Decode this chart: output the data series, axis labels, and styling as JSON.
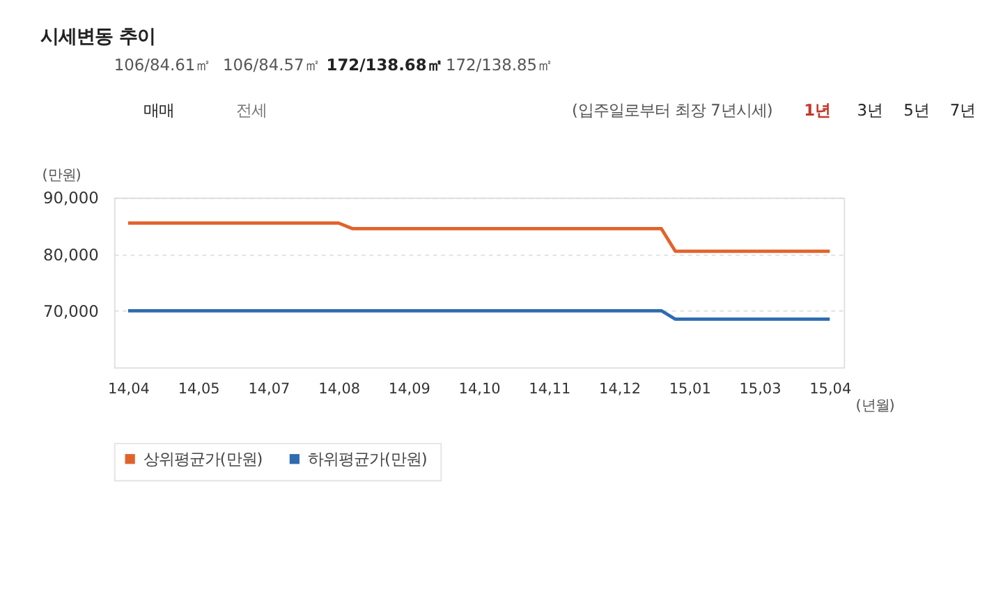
{
  "chart_data": {
    "type": "line",
    "title": "시세변동 추이",
    "ylabel": "(만원)",
    "xlabel": "(년월)",
    "categories": [
      "14,04",
      null,
      null,
      null,
      null,
      "14,05",
      null,
      null,
      null,
      null,
      "14,07",
      null,
      null,
      null,
      null,
      "14,08",
      null,
      null,
      null,
      null,
      "14,09",
      null,
      null,
      null,
      null,
      "14,10",
      null,
      null,
      null,
      null,
      "14,11",
      null,
      null,
      null,
      null,
      "14,12",
      null,
      null,
      null,
      null,
      "15,01",
      null,
      null,
      null,
      null,
      "15,03",
      null,
      null,
      null,
      null,
      "15,04"
    ],
    "series": [
      {
        "name": "상위평균가(만원)",
        "color": "#e2622b",
        "values": [
          85500,
          85500,
          85500,
          85500,
          85500,
          85500,
          85500,
          85500,
          85500,
          85500,
          85500,
          85500,
          85500,
          85500,
          85500,
          85500,
          84500,
          84500,
          84500,
          84500,
          84500,
          84500,
          84500,
          84500,
          84500,
          84500,
          84500,
          84500,
          84500,
          84500,
          84500,
          84500,
          84500,
          84500,
          84500,
          84500,
          84500,
          84500,
          84500,
          80500,
          80500,
          80500,
          80500,
          80500,
          80500,
          80500,
          80500,
          80500,
          80500,
          80500,
          80500
        ]
      },
      {
        "name": "하위평균가(만원)",
        "color": "#2f6bb1",
        "values": [
          70000,
          70000,
          70000,
          70000,
          70000,
          70000,
          70000,
          70000,
          70000,
          70000,
          70000,
          70000,
          70000,
          70000,
          70000,
          70000,
          70000,
          70000,
          70000,
          70000,
          70000,
          70000,
          70000,
          70000,
          70000,
          70000,
          70000,
          70000,
          70000,
          70000,
          70000,
          70000,
          70000,
          70000,
          70000,
          70000,
          70000,
          70000,
          70000,
          68500,
          68500,
          68500,
          68500,
          68500,
          68500,
          68500,
          68500,
          68500,
          68500,
          68500,
          68500
        ]
      }
    ],
    "ylim": [
      60000,
      90000
    ],
    "yticks": [
      {
        "value": 70000,
        "label": "70,000"
      },
      {
        "value": 80000,
        "label": "80,000"
      },
      {
        "value": 90000,
        "label": "90,000"
      }
    ],
    "grid": "y",
    "legend": "bottom",
    "marker": "none",
    "line_style": "solid",
    "annotations": [
      "106/84.61㎡",
      "106/84.57㎡",
      "172/138.68㎡",
      "172/138.85㎡",
      "매매",
      "전세",
      "(입주일로부터 최장 7년시세)",
      "1년",
      "3년",
      "5년",
      "7년"
    ]
  }
}
